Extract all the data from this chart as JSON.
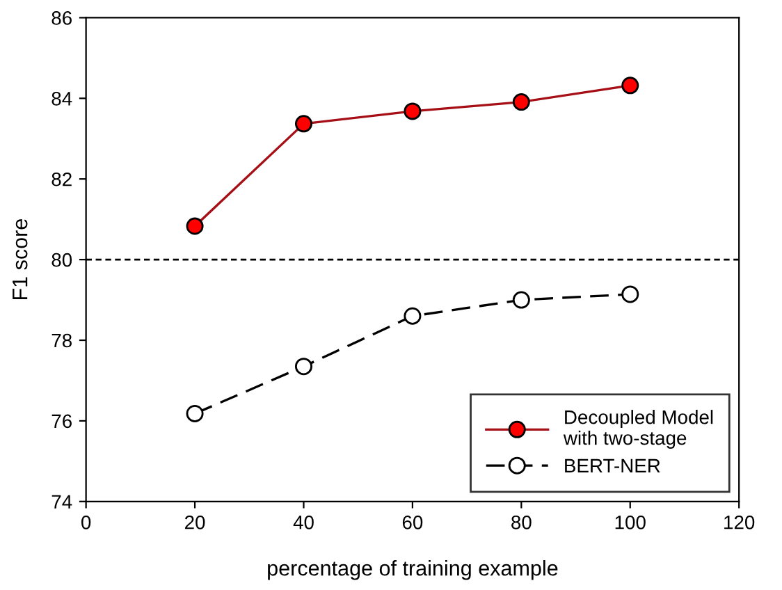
{
  "chart_data": {
    "type": "line",
    "xlabel": "percentage of training example",
    "ylabel": "F1 score",
    "x": [
      20,
      40,
      60,
      80,
      100
    ],
    "series": [
      {
        "name": "Decoupled Model\nwith two-stage",
        "color": "#a50f15",
        "colors": [
          "#ff0000",
          "#ff0000",
          "#ff0000",
          "#ff0000",
          "#ff0000"
        ],
        "line_style": "solid",
        "values": [
          80.83,
          83.37,
          83.68,
          83.91,
          84.32
        ]
      },
      {
        "name": "BERT-NER",
        "color": "#000000",
        "colors": [
          "#ffffff",
          "#ffffff",
          "#ffffff",
          "#ffffff",
          "#ffffff"
        ],
        "line_style": "dashed",
        "values": [
          76.18,
          77.35,
          78.6,
          79.0,
          79.14
        ]
      }
    ],
    "marker": "circle",
    "xlim": [
      0,
      120
    ],
    "xticks": [
      0,
      20,
      40,
      60,
      80,
      100,
      120
    ],
    "ylim": [
      74,
      86
    ],
    "yticks": [
      74,
      76,
      78,
      80,
      82,
      84,
      86
    ],
    "ref_lines": [
      {
        "axis": "y",
        "value": 80,
        "line_style": "dotted",
        "color": "#000000"
      }
    ],
    "grid": false,
    "legend": "bottom right"
  }
}
